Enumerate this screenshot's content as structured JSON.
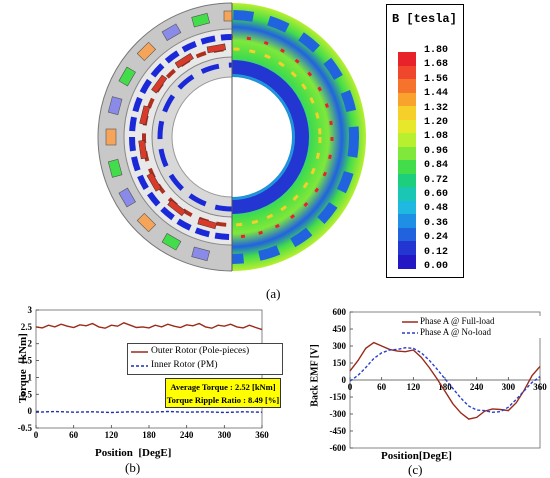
{
  "figure_a": {
    "panel_label": "(a)",
    "colorbar": {
      "title": "B [tesla]",
      "ticks": [
        "1.80",
        "1.68",
        "1.56",
        "1.44",
        "1.32",
        "1.20",
        "1.08",
        "0.96",
        "0.84",
        "0.72",
        "0.60",
        "0.48",
        "0.36",
        "0.24",
        "0.12",
        "0.00"
      ],
      "colors": [
        "#e8222a",
        "#f0472c",
        "#f5732d",
        "#f9a32c",
        "#f6cf2a",
        "#e6e829",
        "#b8ef2e",
        "#7fe83a",
        "#43dc4b",
        "#1dcf7c",
        "#1ac7b5",
        "#1fb8e0",
        "#1f8fe6",
        "#2163df",
        "#2336d2",
        "#2418c4"
      ]
    },
    "colors": {
      "housing": "#c8c8c8",
      "rotor_blue": "#1a28d8",
      "pole_red": "#d93a2a",
      "field_green": "#43dc4b",
      "field_blue": "#2338c8"
    }
  },
  "chart_data": [
    {
      "type": "line",
      "panel_label": "(b)",
      "xlabel": "Position  [DegE]",
      "ylabel": "Torque  [kNm]",
      "xlim": [
        0,
        360
      ],
      "ylim": [
        -0.5,
        3
      ],
      "x_ticks": [
        "0",
        "60",
        "120",
        "180",
        "240",
        "300",
        "360"
      ],
      "y_ticks": [
        "3",
        "2.5",
        "2",
        "1.5",
        "1",
        "0.5",
        "0",
        "-0.5"
      ],
      "grid": false,
      "legend_position": "right",
      "series": [
        {
          "name": "Outer Rotor (Pole-pieces)",
          "color": "#9b2a1a",
          "style": "solid",
          "x": [
            0,
            10,
            20,
            30,
            40,
            50,
            60,
            70,
            80,
            90,
            100,
            110,
            120,
            130,
            140,
            150,
            160,
            170,
            180,
            190,
            200,
            210,
            220,
            230,
            240,
            250,
            260,
            270,
            280,
            290,
            300,
            310,
            320,
            330,
            340,
            350,
            360
          ],
          "values": [
            2.5,
            2.47,
            2.55,
            2.5,
            2.58,
            2.52,
            2.48,
            2.56,
            2.53,
            2.6,
            2.5,
            2.46,
            2.55,
            2.52,
            2.62,
            2.55,
            2.48,
            2.5,
            2.47,
            2.55,
            2.5,
            2.58,
            2.52,
            2.48,
            2.56,
            2.53,
            2.6,
            2.5,
            2.46,
            2.55,
            2.52,
            2.58,
            2.5,
            2.47,
            2.55,
            2.48,
            2.42
          ]
        },
        {
          "name": "Inner Rotor (PM)",
          "color": "#1f2fae",
          "style": "dashed",
          "x": [
            0,
            30,
            60,
            90,
            120,
            150,
            180,
            210,
            240,
            270,
            300,
            330,
            360
          ],
          "values": [
            -0.03,
            -0.01,
            -0.03,
            -0.02,
            -0.04,
            -0.02,
            -0.03,
            -0.01,
            -0.03,
            -0.02,
            -0.04,
            -0.02,
            -0.03
          ]
        }
      ],
      "annotation": {
        "line1": "Average Torque : 2.52 [kNm]",
        "line2": "Torque Ripple Ratio : 8.49 [%]",
        "fill": "#ffff00"
      }
    },
    {
      "type": "line",
      "panel_label": "(c)",
      "xlabel": "Position[DegE]",
      "ylabel": "Back EMF [V]",
      "xlim": [
        0,
        360
      ],
      "ylim": [
        -600,
        600
      ],
      "x_ticks": [
        "0",
        "60",
        "120",
        "180",
        "240",
        "300",
        "360"
      ],
      "y_ticks": [
        "600",
        "450",
        "300",
        "150",
        "0",
        "-150",
        "-300",
        "-450",
        "-600"
      ],
      "grid": false,
      "legend_position": "top-right",
      "series": [
        {
          "name": "Phase A @ Full-load",
          "color": "#9b2a1a",
          "style": "solid",
          "x": [
            0,
            15,
            30,
            45,
            60,
            75,
            90,
            105,
            120,
            135,
            150,
            165,
            180,
            195,
            210,
            225,
            240,
            255,
            270,
            285,
            300,
            315,
            330,
            345,
            360
          ],
          "values": [
            80,
            170,
            280,
            330,
            300,
            270,
            255,
            250,
            265,
            200,
            110,
            10,
            -100,
            -210,
            -290,
            -345,
            -330,
            -275,
            -255,
            -260,
            -270,
            -200,
            -90,
            40,
            120
          ]
        },
        {
          "name": "Phase A @ No-load",
          "color": "#2a3fc8",
          "style": "dashed",
          "x": [
            0,
            15,
            30,
            45,
            60,
            75,
            90,
            105,
            120,
            135,
            150,
            165,
            180,
            195,
            210,
            225,
            240,
            255,
            270,
            285,
            300,
            315,
            330,
            345,
            360
          ],
          "values": [
            -10,
            40,
            110,
            190,
            240,
            265,
            270,
            285,
            280,
            240,
            175,
            95,
            10,
            -75,
            -160,
            -230,
            -265,
            -270,
            -285,
            -280,
            -240,
            -170,
            -95,
            -20,
            30
          ]
        }
      ]
    }
  ]
}
